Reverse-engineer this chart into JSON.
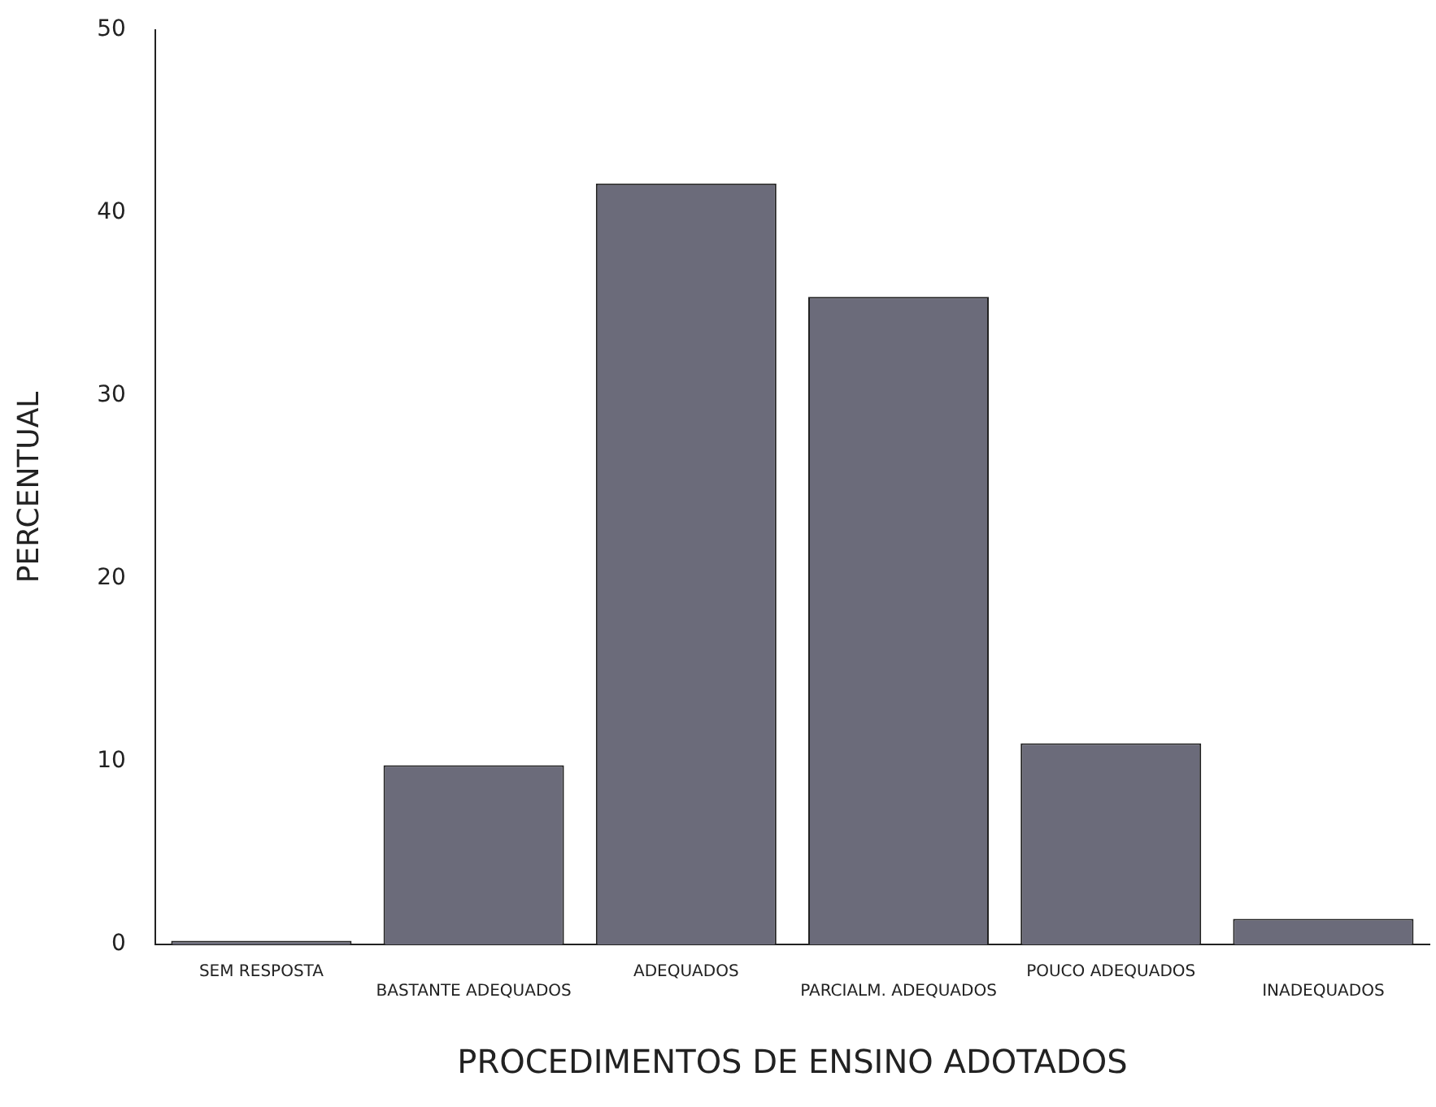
{
  "chart_data": {
    "type": "bar",
    "xlabel": "PROCEDIMENTOS DE ENSINO ADOTADOS",
    "ylabel": "PERCENTUAL",
    "categories": [
      "SEM RESPOSTA",
      "BASTANTE ADEQUADOS",
      "ADEQUADOS",
      "PARCIALM. ADEQUADOS",
      "POUCO ADEQUADOS",
      "INADEQUADOS"
    ],
    "values": [
      0.2,
      9.8,
      41.6,
      35.4,
      11.0,
      1.4
    ],
    "color": "#6b6b7a",
    "ylim": [
      0,
      50
    ],
    "yticks": [
      0,
      10,
      20,
      30,
      40,
      50
    ],
    "grid": false,
    "legend": false
  }
}
